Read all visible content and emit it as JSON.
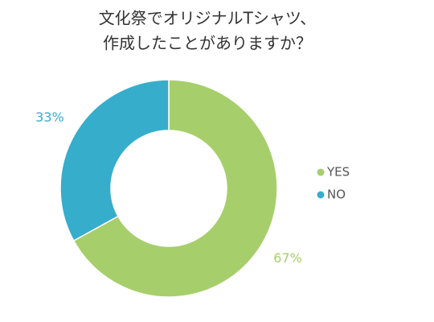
{
  "chart_data": {
    "type": "donut",
    "title": [
      "文化祭でオリジナルTシャツ、",
      "作成したことがありますか？"
    ],
    "categories": [
      "YES",
      "NO"
    ],
    "values": [
      67,
      33
    ],
    "value_labels": [
      "67%",
      "33%"
    ],
    "colors": [
      "#a6cf6b",
      "#36adcb"
    ],
    "legend": "right"
  }
}
